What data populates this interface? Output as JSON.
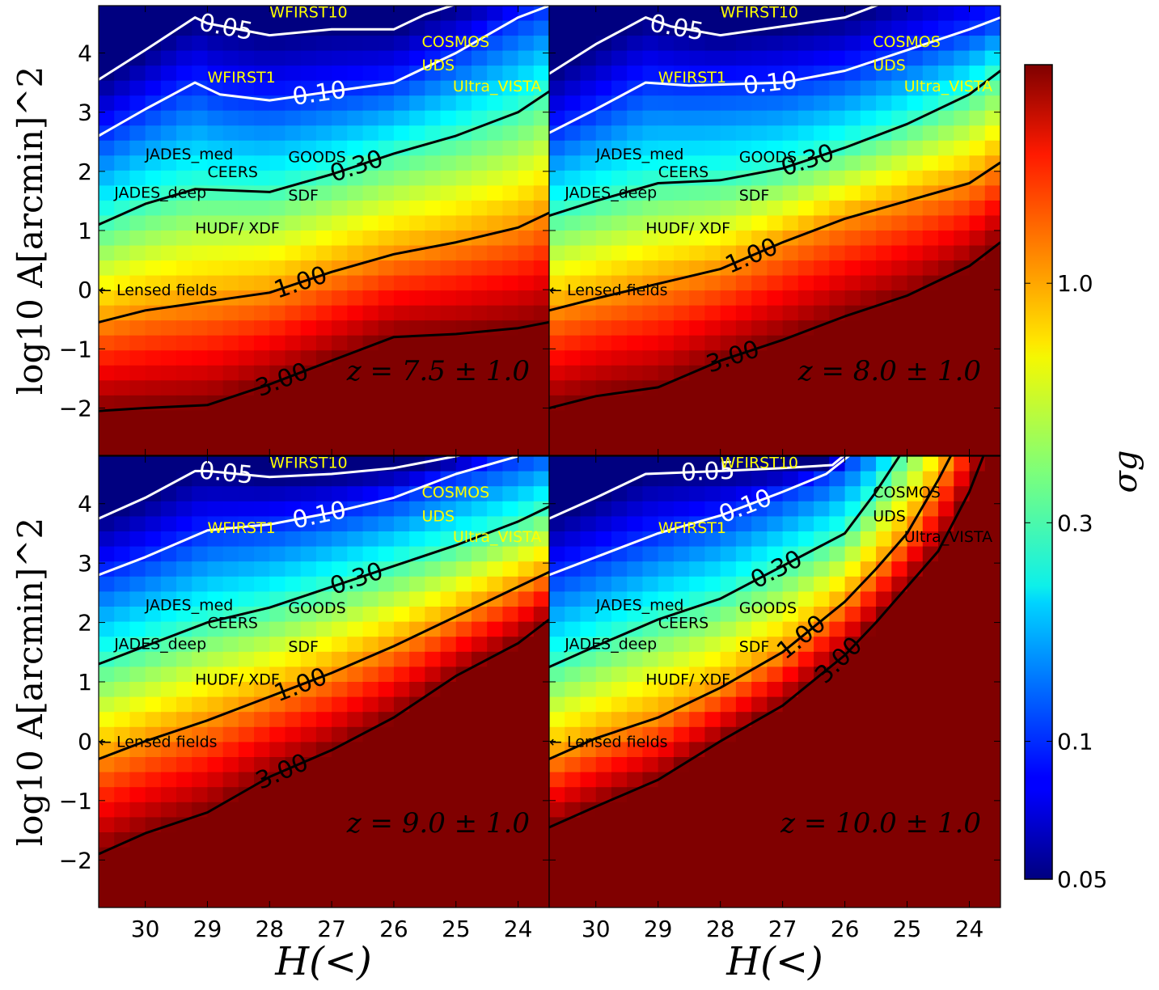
{
  "chart_data": {
    "type": "heatmap",
    "layout": "2x2 panels, shared axes",
    "xlabel": "H(<)",
    "ylabel": "log10 A[arcmin]^2",
    "xlim": [
      30.75,
      23.5
    ],
    "ylim": [
      -2.8,
      4.8
    ],
    "x_ticks": [
      30,
      29,
      28,
      27,
      26,
      25,
      24
    ],
    "y_ticks": [
      -2,
      -1,
      0,
      1,
      2,
      3,
      4
    ],
    "x_tick_labels": [
      "30",
      "29",
      "28",
      "27",
      "26",
      "25",
      "24"
    ],
    "y_tick_labels": [
      "−2",
      "−1",
      "0",
      "1",
      "2",
      "3",
      "4"
    ],
    "colormap": "jet",
    "colorbar": {
      "label": "σg",
      "scale": "log",
      "range": [
        0.05,
        3.0
      ],
      "ticks": [
        0.05,
        0.1,
        0.3,
        1.0
      ],
      "tick_labels": [
        "0.05",
        "0.1",
        "0.3",
        "1.0"
      ]
    },
    "panels": [
      {
        "label": "z = 7.5 ± 1.0",
        "contours": [
          {
            "level": "0.05",
            "color": "white",
            "points": [
              [
                30.75,
                3.55
              ],
              [
                30,
                4.05
              ],
              [
                29.2,
                4.6
              ],
              [
                29,
                4.5
              ],
              [
                28,
                4.3
              ],
              [
                27,
                4.4
              ],
              [
                26,
                4.4
              ],
              [
                25.5,
                4.65
              ],
              [
                24.5,
                5.0
              ]
            ]
          },
          {
            "level": "0.10",
            "color": "white",
            "points": [
              [
                30.75,
                2.6
              ],
              [
                30,
                3.05
              ],
              [
                29.2,
                3.5
              ],
              [
                28.8,
                3.3
              ],
              [
                28,
                3.2
              ],
              [
                27,
                3.35
              ],
              [
                26,
                3.5
              ],
              [
                25,
                4.0
              ],
              [
                24,
                4.6
              ],
              [
                23.5,
                4.8
              ]
            ]
          },
          {
            "level": "0.30",
            "color": "black",
            "points": [
              [
                30.75,
                1.1
              ],
              [
                30,
                1.45
              ],
              [
                29.2,
                1.7
              ],
              [
                28,
                1.65
              ],
              [
                27,
                1.95
              ],
              [
                26,
                2.3
              ],
              [
                25,
                2.6
              ],
              [
                24,
                3.0
              ],
              [
                23.5,
                3.35
              ]
            ]
          },
          {
            "level": "1.00",
            "color": "black",
            "points": [
              [
                30.75,
                -0.55
              ],
              [
                30,
                -0.35
              ],
              [
                29,
                -0.2
              ],
              [
                28,
                -0.05
              ],
              [
                27,
                0.3
              ],
              [
                26,
                0.6
              ],
              [
                25,
                0.8
              ],
              [
                24,
                1.05
              ],
              [
                23.5,
                1.3
              ]
            ]
          },
          {
            "level": "3.00",
            "color": "black",
            "points": [
              [
                30.75,
                -2.05
              ],
              [
                30,
                -2.0
              ],
              [
                29,
                -1.95
              ],
              [
                28,
                -1.6
              ],
              [
                27,
                -1.2
              ],
              [
                26,
                -0.8
              ],
              [
                25,
                -0.75
              ],
              [
                24,
                -0.65
              ],
              [
                23.5,
                -0.55
              ]
            ]
          }
        ]
      },
      {
        "label": "z = 8.0 ± 1.0",
        "contours": [
          {
            "level": "0.05",
            "color": "white",
            "points": [
              [
                30.75,
                3.65
              ],
              [
                30,
                4.15
              ],
              [
                29.2,
                4.6
              ],
              [
                28.8,
                4.45
              ],
              [
                28,
                4.3
              ],
              [
                27,
                4.45
              ],
              [
                26,
                4.6
              ],
              [
                25.5,
                4.8
              ],
              [
                25,
                5.0
              ]
            ]
          },
          {
            "level": "0.10",
            "color": "white",
            "points": [
              [
                30.75,
                2.65
              ],
              [
                30,
                3.05
              ],
              [
                29.2,
                3.5
              ],
              [
                28.5,
                3.45
              ],
              [
                27,
                3.5
              ],
              [
                26,
                3.7
              ],
              [
                25,
                4.05
              ],
              [
                24,
                4.4
              ],
              [
                23.5,
                4.6
              ]
            ]
          },
          {
            "level": "0.30",
            "color": "black",
            "points": [
              [
                30.75,
                1.25
              ],
              [
                30,
                1.5
              ],
              [
                29,
                1.8
              ],
              [
                28,
                1.85
              ],
              [
                27,
                2.05
              ],
              [
                26,
                2.4
              ],
              [
                25,
                2.8
              ],
              [
                24,
                3.3
              ],
              [
                23.5,
                3.7
              ]
            ]
          },
          {
            "level": "1.00",
            "color": "black",
            "points": [
              [
                30.75,
                -0.35
              ],
              [
                30,
                -0.15
              ],
              [
                29,
                0.1
              ],
              [
                28,
                0.35
              ],
              [
                27,
                0.8
              ],
              [
                26,
                1.2
              ],
              [
                25,
                1.5
              ],
              [
                24,
                1.8
              ],
              [
                23.5,
                2.15
              ]
            ]
          },
          {
            "level": "3.00",
            "color": "black",
            "points": [
              [
                30.75,
                -2.0
              ],
              [
                30,
                -1.8
              ],
              [
                29,
                -1.65
              ],
              [
                28,
                -1.2
              ],
              [
                27,
                -0.85
              ],
              [
                26,
                -0.45
              ],
              [
                25,
                -0.1
              ],
              [
                24,
                0.4
              ],
              [
                23.5,
                0.8
              ]
            ]
          }
        ]
      },
      {
        "label": "z = 9.0 ± 1.0",
        "contours": [
          {
            "level": "0.05",
            "color": "white",
            "points": [
              [
                30.75,
                3.75
              ],
              [
                30,
                4.1
              ],
              [
                29.2,
                4.55
              ],
              [
                29,
                4.55
              ],
              [
                28,
                4.45
              ],
              [
                27,
                4.5
              ],
              [
                26,
                4.6
              ],
              [
                25,
                4.8
              ],
              [
                24.5,
                4.9
              ]
            ]
          },
          {
            "level": "0.10",
            "color": "white",
            "points": [
              [
                30.75,
                2.8
              ],
              [
                30,
                3.1
              ],
              [
                29,
                3.55
              ],
              [
                28,
                3.65
              ],
              [
                27,
                3.85
              ],
              [
                26,
                4.1
              ],
              [
                25,
                4.5
              ],
              [
                24,
                4.8
              ]
            ]
          },
          {
            "level": "0.30",
            "color": "black",
            "points": [
              [
                30.75,
                1.3
              ],
              [
                30,
                1.6
              ],
              [
                29,
                2.0
              ],
              [
                28,
                2.25
              ],
              [
                27,
                2.6
              ],
              [
                26,
                2.95
              ],
              [
                25,
                3.3
              ],
              [
                24,
                3.7
              ],
              [
                23.5,
                3.95
              ]
            ]
          },
          {
            "level": "1.00",
            "color": "black",
            "points": [
              [
                30.75,
                -0.3
              ],
              [
                30,
                0.0
              ],
              [
                29,
                0.35
              ],
              [
                28,
                0.75
              ],
              [
                27,
                1.15
              ],
              [
                26,
                1.6
              ],
              [
                25,
                2.1
              ],
              [
                24,
                2.6
              ],
              [
                23.5,
                2.85
              ]
            ]
          },
          {
            "level": "3.00",
            "color": "black",
            "points": [
              [
                30.75,
                -1.9
              ],
              [
                30,
                -1.55
              ],
              [
                29,
                -1.2
              ],
              [
                28,
                -0.6
              ],
              [
                27,
                -0.15
              ],
              [
                26,
                0.4
              ],
              [
                25,
                1.1
              ],
              [
                24,
                1.65
              ],
              [
                23.5,
                2.05
              ]
            ]
          }
        ]
      },
      {
        "label": "z = 10.0 ± 1.0",
        "contours": [
          {
            "level": "0.05",
            "color": "white",
            "points": [
              [
                30.75,
                3.75
              ],
              [
                30,
                4.1
              ],
              [
                29.2,
                4.5
              ],
              [
                28,
                4.55
              ],
              [
                27,
                4.6
              ],
              [
                26.2,
                4.65
              ],
              [
                25.8,
                5.0
              ]
            ]
          },
          {
            "level": "0.10",
            "color": "white",
            "points": [
              [
                30.75,
                2.8
              ],
              [
                30,
                3.1
              ],
              [
                29,
                3.5
              ],
              [
                28,
                3.8
              ],
              [
                27,
                4.2
              ],
              [
                26.3,
                4.5
              ],
              [
                25.7,
                5.0
              ]
            ]
          },
          {
            "level": "0.30",
            "color": "black",
            "points": [
              [
                30.75,
                1.25
              ],
              [
                30,
                1.6
              ],
              [
                29,
                2.05
              ],
              [
                28,
                2.4
              ],
              [
                27,
                2.95
              ],
              [
                26,
                3.5
              ],
              [
                25.5,
                4.2
              ],
              [
                25,
                5.0
              ]
            ]
          },
          {
            "level": "1.00",
            "color": "black",
            "points": [
              [
                30.75,
                -0.3
              ],
              [
                30,
                0.05
              ],
              [
                29,
                0.4
              ],
              [
                28,
                0.9
              ],
              [
                27,
                1.5
              ],
              [
                26,
                2.35
              ],
              [
                25.5,
                2.9
              ],
              [
                25,
                3.5
              ],
              [
                24.5,
                4.4
              ],
              [
                24.2,
                5.0
              ]
            ]
          },
          {
            "level": "3.00",
            "color": "black",
            "points": [
              [
                30.75,
                -1.45
              ],
              [
                30,
                -1.1
              ],
              [
                29,
                -0.65
              ],
              [
                28,
                0.0
              ],
              [
                27,
                0.6
              ],
              [
                26,
                1.45
              ],
              [
                25.5,
                2.0
              ],
              [
                25,
                2.6
              ],
              [
                24.5,
                3.2
              ],
              [
                24,
                4.2
              ],
              [
                23.7,
                5.0
              ]
            ]
          }
        ]
      }
    ],
    "surveys": [
      {
        "name": "WFIRST10",
        "x": 28.0,
        "y": 4.7,
        "color": "yellow"
      },
      {
        "name": "WFIRST1",
        "x": 29.0,
        "y": 3.6,
        "color": "yellow"
      },
      {
        "name": "COSMOS",
        "x": 25.55,
        "y": 4.2,
        "color": "yellow"
      },
      {
        "name": "UDS",
        "x": 25.55,
        "y": 3.8,
        "color": "yellow"
      },
      {
        "name": "Ultra_VISTA",
        "x": 25.05,
        "y": 3.45,
        "color": "yellow"
      },
      {
        "name": "JADES_med",
        "x": 30.0,
        "y": 2.3,
        "color": "black"
      },
      {
        "name": "CEERS",
        "x": 29.0,
        "y": 2.0,
        "color": "black"
      },
      {
        "name": "GOODS",
        "x": 27.7,
        "y": 2.25,
        "color": "black"
      },
      {
        "name": "JADES_deep",
        "x": 30.5,
        "y": 1.65,
        "color": "black"
      },
      {
        "name": "SDF",
        "x": 27.7,
        "y": 1.6,
        "color": "black"
      },
      {
        "name": "HUDF/ XDF",
        "x": 29.2,
        "y": 1.05,
        "color": "black"
      },
      {
        "name": "← Lensed fields",
        "x": 30.75,
        "y": 0.0,
        "color": "black"
      }
    ]
  }
}
